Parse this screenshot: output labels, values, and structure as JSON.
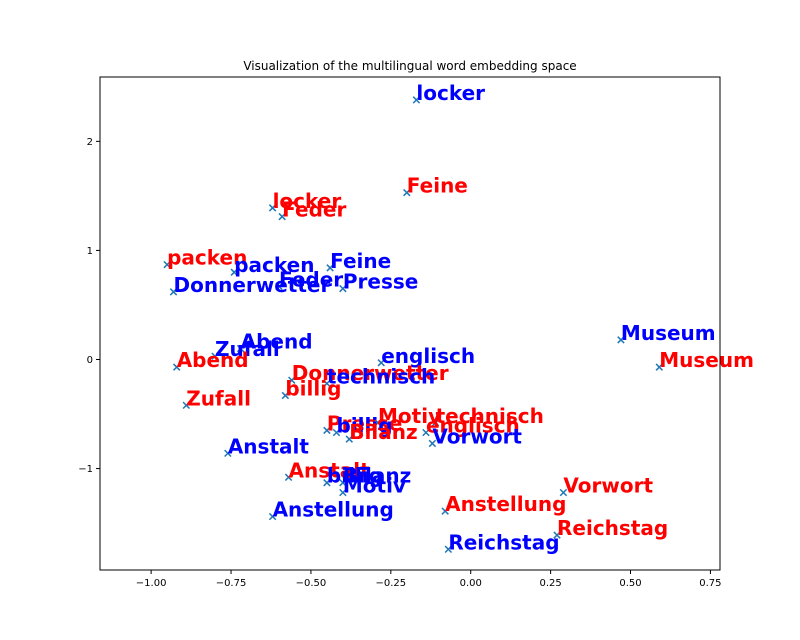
{
  "chart_data": {
    "type": "scatter",
    "title": "Visualization of the multilingual word embedding space",
    "xlabel": "",
    "ylabel": "",
    "xlim": [
      -1.16,
      0.78
    ],
    "ylim": [
      -1.93,
      2.59
    ],
    "x_ticks": [
      -1.0,
      -0.75,
      -0.5,
      -0.25,
      0.0,
      0.25,
      0.5,
      0.75
    ],
    "x_tick_labels": [
      "−1.00",
      "−0.75",
      "−0.50",
      "−0.25",
      "0.00",
      "0.25",
      "0.50",
      "0.75"
    ],
    "y_ticks": [
      -1,
      0,
      1,
      2
    ],
    "y_tick_labels": [
      "−1",
      "0",
      "1",
      "2"
    ],
    "grid": false,
    "marker": "x",
    "marker_color": "#1f77b4",
    "colors": {
      "red": "#ff0000",
      "blue": "#0000ff"
    },
    "points": [
      {
        "label": "locker",
        "x": -0.17,
        "y": 2.38,
        "color": "blue"
      },
      {
        "label": "Feine",
        "x": -0.2,
        "y": 1.53,
        "color": "red"
      },
      {
        "label": "locker",
        "x": -0.62,
        "y": 1.39,
        "color": "red"
      },
      {
        "label": "Feder",
        "x": -0.59,
        "y": 1.31,
        "color": "red"
      },
      {
        "label": "packen",
        "x": -0.95,
        "y": 0.87,
        "color": "red"
      },
      {
        "label": "packen",
        "x": -0.74,
        "y": 0.8,
        "color": "blue"
      },
      {
        "label": "Feine",
        "x": -0.44,
        "y": 0.84,
        "color": "blue"
      },
      {
        "label": "Donnerwetter",
        "x": -0.93,
        "y": 0.62,
        "color": "blue"
      },
      {
        "label": "Feder",
        "x": -0.6,
        "y": 0.67,
        "color": "blue"
      },
      {
        "label": "Presse",
        "x": -0.4,
        "y": 0.65,
        "color": "blue"
      },
      {
        "label": "Museum",
        "x": 0.47,
        "y": 0.18,
        "color": "blue"
      },
      {
        "label": "Abend",
        "x": -0.72,
        "y": 0.1,
        "color": "blue"
      },
      {
        "label": "Zufall",
        "x": -0.8,
        "y": 0.03,
        "color": "blue"
      },
      {
        "label": "englisch",
        "x": -0.28,
        "y": -0.03,
        "color": "blue"
      },
      {
        "label": "Abend",
        "x": -0.92,
        "y": -0.07,
        "color": "red"
      },
      {
        "label": "Museum",
        "x": 0.59,
        "y": -0.07,
        "color": "red"
      },
      {
        "label": "Donnerwetter",
        "x": -0.56,
        "y": -0.19,
        "color": "red"
      },
      {
        "label": "technisch",
        "x": -0.45,
        "y": -0.22,
        "color": "blue"
      },
      {
        "label": "billig",
        "x": -0.58,
        "y": -0.33,
        "color": "red"
      },
      {
        "label": "Zufall",
        "x": -0.89,
        "y": -0.42,
        "color": "red"
      },
      {
        "label": "Motiv",
        "x": -0.29,
        "y": -0.58,
        "color": "red"
      },
      {
        "label": "technisch",
        "x": -0.11,
        "y": -0.58,
        "color": "red"
      },
      {
        "label": "Presse",
        "x": -0.45,
        "y": -0.65,
        "color": "red"
      },
      {
        "label": "billig",
        "x": -0.42,
        "y": -0.67,
        "color": "blue"
      },
      {
        "label": "englisch",
        "x": -0.14,
        "y": -0.67,
        "color": "red"
      },
      {
        "label": "Bilanz",
        "x": -0.38,
        "y": -0.73,
        "color": "red"
      },
      {
        "label": "Vorwort",
        "x": -0.12,
        "y": -0.77,
        "color": "blue"
      },
      {
        "label": "Anstalt",
        "x": -0.76,
        "y": -0.86,
        "color": "blue"
      },
      {
        "label": "Anstalt",
        "x": -0.57,
        "y": -1.08,
        "color": "red"
      },
      {
        "label": "billig",
        "x": -0.45,
        "y": -1.13,
        "color": "blue"
      },
      {
        "label": "Bilanz",
        "x": -0.4,
        "y": -1.13,
        "color": "blue"
      },
      {
        "label": "Motiv",
        "x": -0.4,
        "y": -1.22,
        "color": "blue"
      },
      {
        "label": "Vorwort",
        "x": 0.29,
        "y": -1.22,
        "color": "red"
      },
      {
        "label": "Anstellung",
        "x": -0.08,
        "y": -1.39,
        "color": "red"
      },
      {
        "label": "Anstellung",
        "x": -0.62,
        "y": -1.44,
        "color": "blue"
      },
      {
        "label": "Reichstag",
        "x": 0.27,
        "y": -1.61,
        "color": "red"
      },
      {
        "label": "Reichstag",
        "x": -0.07,
        "y": -1.74,
        "color": "blue"
      }
    ]
  }
}
